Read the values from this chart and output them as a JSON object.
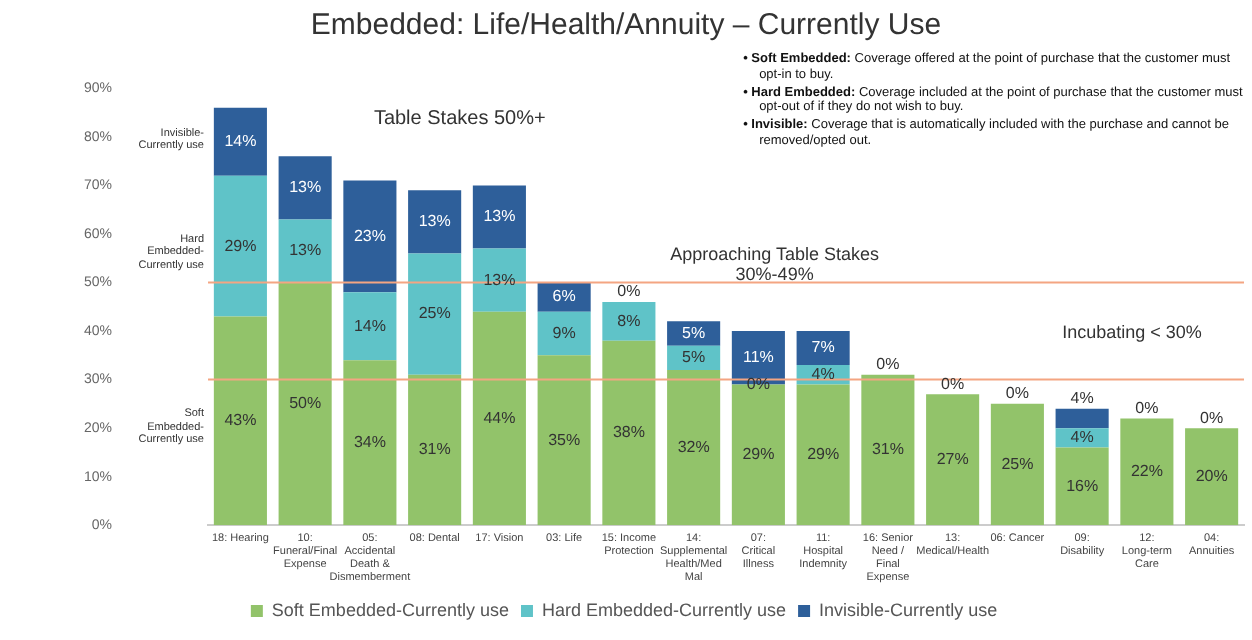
{
  "chart_data": {
    "type": "bar",
    "stacked": true,
    "title": "Embedded: Life/Health/Annuity – Currently Use",
    "categories": [
      "18: Hearing",
      "10: Funeral/Final Expense",
      "05: Accidental Death & Dismemberment",
      "08: Dental",
      "17: Vision",
      "03: Life",
      "15: Income Protection",
      "14: Supplemental Health/Med Mal",
      "07: Critical Illness",
      "11: Hospital Indemnity",
      "16: Senior Need / Final Expense",
      "13: Medical/Health",
      "06: Cancer",
      "09: Disability",
      "12: Long-term Care",
      "04: Annuities"
    ],
    "series": [
      {
        "name": "Soft Embedded-Currently use",
        "color": "#92c36a",
        "values": [
          43,
          50,
          34,
          31,
          44,
          35,
          38,
          32,
          29,
          29,
          31,
          27,
          25,
          16,
          22,
          20
        ],
        "value_labels": [
          "43%",
          "50%",
          "34%",
          "31%",
          "44%",
          "35%",
          "38%",
          "32%",
          "29%",
          "29%",
          "31%",
          "27%",
          "25%",
          "16%",
          "22%",
          "20%"
        ]
      },
      {
        "name": "Hard Embedded-Currently use",
        "color": "#5fc3c8",
        "values": [
          29,
          13,
          14,
          25,
          13,
          9,
          8,
          5,
          0,
          4,
          null,
          null,
          null,
          4,
          null,
          null
        ],
        "value_labels": [
          "29%",
          "13%",
          "14%",
          "25%",
          "13%",
          "9%",
          "8%",
          "5%",
          "0%",
          "4%",
          null,
          null,
          null,
          "4%",
          null,
          null
        ]
      },
      {
        "name": "Invisible-Currently use",
        "color": "#2e5f9a",
        "values": [
          14,
          13,
          23,
          13,
          13,
          6,
          0,
          5,
          11,
          7,
          0,
          0,
          0,
          4,
          0,
          0
        ],
        "value_labels": [
          "14%",
          "13%",
          "23%",
          "13%",
          "13%",
          "6%",
          "0%",
          "5%",
          "11%",
          "7%",
          "0%",
          "0%",
          "0%",
          "4%",
          "0%",
          "0%"
        ]
      }
    ],
    "ylim": [
      0,
      90
    ],
    "yticks": [
      {
        "value": 0,
        "label": "0%"
      },
      {
        "value": 10,
        "label": "10%"
      },
      {
        "value": 20,
        "label": "20%"
      },
      {
        "value": 30,
        "label": "30%"
      },
      {
        "value": 40,
        "label": "40%"
      },
      {
        "value": 50,
        "label": "50%"
      },
      {
        "value": 60,
        "label": "60%"
      },
      {
        "value": 70,
        "label": "70%"
      },
      {
        "value": 80,
        "label": "80%"
      },
      {
        "value": 90,
        "label": "90%"
      }
    ],
    "ref_lines": [
      {
        "axis": "y",
        "value": 50,
        "color": "#f4a582"
      },
      {
        "axis": "y",
        "value": 30,
        "color": "#f4a582"
      }
    ],
    "legend": "bottom",
    "annotations": [
      "Table Stakes 50%+",
      "Approaching Table Stakes 30%-49%",
      "Incubating < 30%",
      "Invisible-Currently use",
      "Hard Embedded-Currently use",
      "Soft Embedded-Currently use",
      "• Soft Embedded: Coverage offered at the point of purchase that the customer must opt-in to buy.",
      "• Hard Embedded: Coverage included at the point of purchase that the customer must opt-out of if they do not wish to buy.",
      "• Invisible: Coverage that is automatically included with the purchase and cannot be removed/opted out."
    ]
  }
}
